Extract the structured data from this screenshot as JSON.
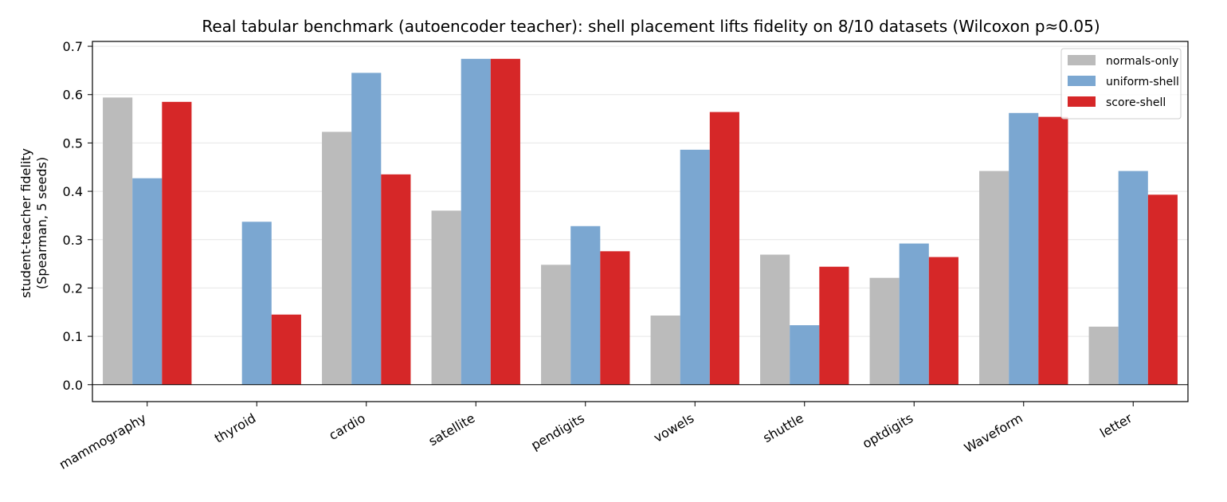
{
  "chart_data": {
    "type": "bar",
    "title": "Real tabular benchmark (autoencoder teacher): shell placement lifts fidelity on 8/10 datasets (Wilcoxon p≈0.05)",
    "ylabel_lines": [
      "student-teacher fidelity",
      "(Spearman, 5 seeds)"
    ],
    "xlabel": "",
    "categories": [
      "mammography",
      "thyroid",
      "cardio",
      "satellite",
      "pendigits",
      "vowels",
      "shuttle",
      "optdigits",
      "Waveform",
      "letter"
    ],
    "series": [
      {
        "name": "normals-only",
        "color": "#bbbbbb",
        "values": [
          0.594,
          0.0,
          0.523,
          0.36,
          0.248,
          0.143,
          0.269,
          0.221,
          0.442,
          0.12
        ]
      },
      {
        "name": "uniform-shell",
        "color": "#7ba7d1",
        "values": [
          0.427,
          0.337,
          0.645,
          0.674,
          0.328,
          0.486,
          0.123,
          0.292,
          0.562,
          0.442
        ]
      },
      {
        "name": "score-shell",
        "color": "#d62728",
        "values": [
          0.585,
          0.145,
          0.435,
          0.674,
          0.276,
          0.564,
          0.244,
          0.264,
          0.554,
          0.393
        ]
      }
    ],
    "ylim": [
      -0.035,
      0.71
    ],
    "yticks": [
      0.0,
      0.1,
      0.2,
      0.3,
      0.4,
      0.5,
      0.6,
      0.7
    ],
    "grid": "y",
    "legend_position": "top-right"
  }
}
